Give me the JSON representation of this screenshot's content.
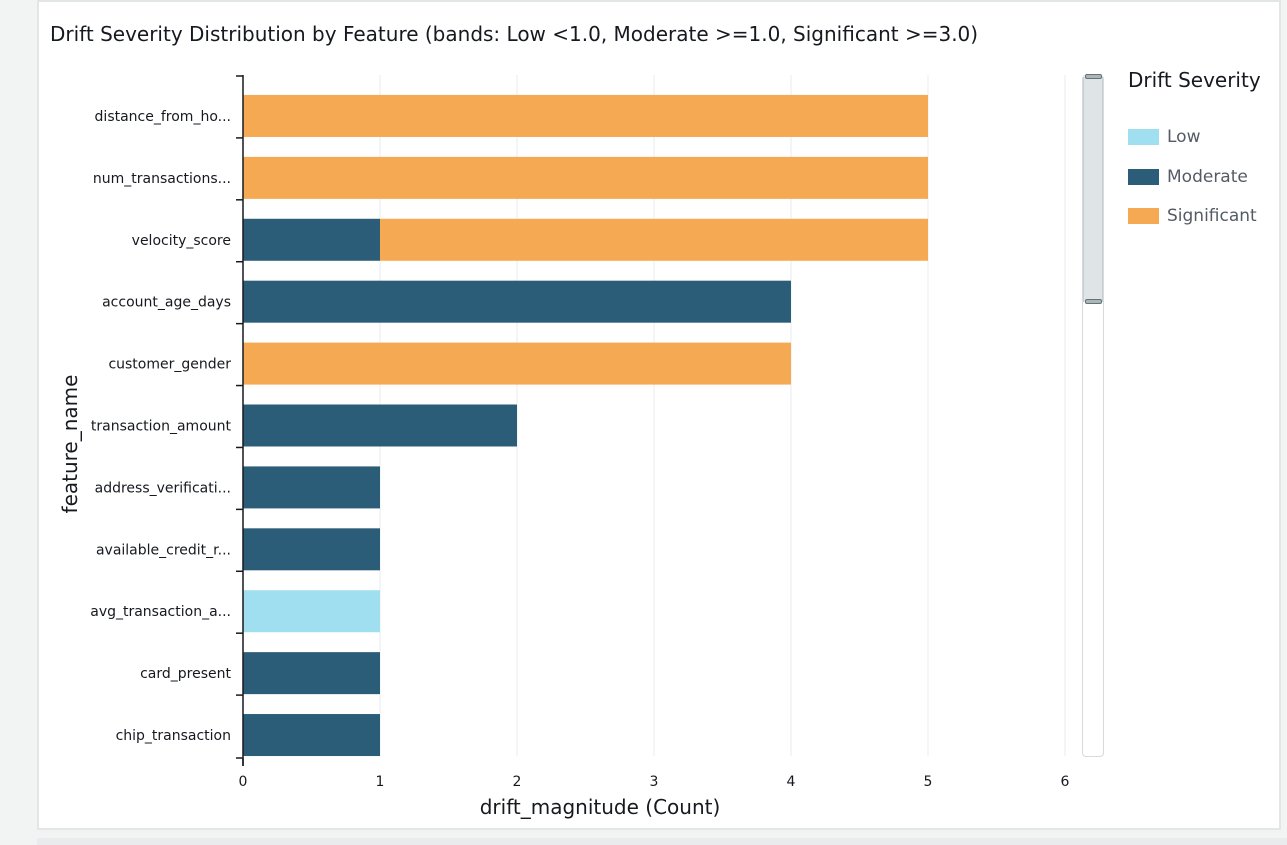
{
  "chart_data": {
    "type": "bar",
    "orientation": "horizontal",
    "stacked": true,
    "title": "Drift Severity Distribution by Feature (bands: Low <1.0, Moderate >=1.0, Significant >=3.0)",
    "xlabel": "drift_magnitude (Count)",
    "ylabel": "feature_name",
    "xlim": [
      0,
      6.2
    ],
    "xticks": [
      "0",
      "1",
      "2",
      "3",
      "4",
      "5",
      "6"
    ],
    "grid": true,
    "legend_title": "Drift Severity",
    "legend_position": "right",
    "categories": [
      "distance_from_ho...",
      "num_transactions...",
      "velocity_score",
      "account_age_days",
      "customer_gender",
      "transaction_amount",
      "address_verificati...",
      "available_credit_r...",
      "avg_transaction_a...",
      "card_present",
      "chip_transaction"
    ],
    "series": [
      {
        "name": "Low",
        "color": "#a0dff0",
        "values": [
          0,
          0,
          0,
          0,
          0,
          0,
          0,
          0,
          1,
          0,
          0
        ]
      },
      {
        "name": "Moderate",
        "color": "#2b5c78",
        "values": [
          0,
          0,
          1,
          4,
          0,
          2,
          1,
          1,
          0,
          1,
          1
        ]
      },
      {
        "name": "Significant",
        "color": "#f5a952",
        "values": [
          5,
          5,
          4,
          0,
          4,
          0,
          0,
          0,
          0,
          0,
          0
        ]
      }
    ]
  }
}
